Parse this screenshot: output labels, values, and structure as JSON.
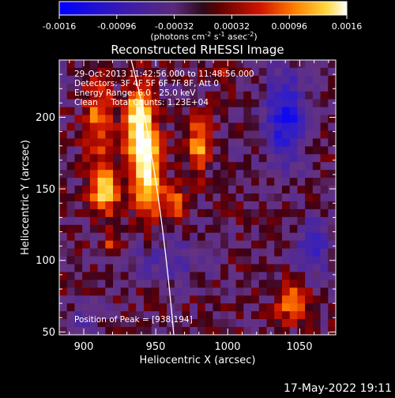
{
  "colorbar": {
    "ticks": [
      "-0.0016",
      "-0.00096",
      "-0.00032",
      "0.00032",
      "0.00096",
      "0.0016"
    ],
    "units_prefix": "(photons cm",
    "units_exp1": "-2",
    "units_mid": " s",
    "units_exp2": "-1",
    "units_mid2": " asec",
    "units_exp3": "-2",
    "units_suffix": ")"
  },
  "chart_data": {
    "type": "heatmap",
    "title": "Reconstructed RHESSI Image",
    "xlabel": "Heliocentric X (arcsec)",
    "ylabel": "Heliocentric Y (arcsec)",
    "xlim": [
      883,
      1075
    ],
    "ylim": [
      48,
      240
    ],
    "xticks": [
      900,
      950,
      1000,
      1050
    ],
    "yticks": [
      50,
      100,
      150,
      200
    ],
    "annotations": [
      "29-Oct-2013 11:42:56.000 to 11:48:56.000",
      "Detectors: 3F 4F 5F 6F 7F 8F, Att 0",
      "Energy Range: 6.0 - 25.0 keV",
      "Clean     Total Counts: 1.23E+04"
    ],
    "peak_label": "Position of Peak = [938,194]",
    "peak": [
      938,
      194
    ],
    "colormap": "RHESSI red-temperature / purple-blue",
    "limb": true
  },
  "footer": {
    "date": "17-May-2022 19:11"
  }
}
